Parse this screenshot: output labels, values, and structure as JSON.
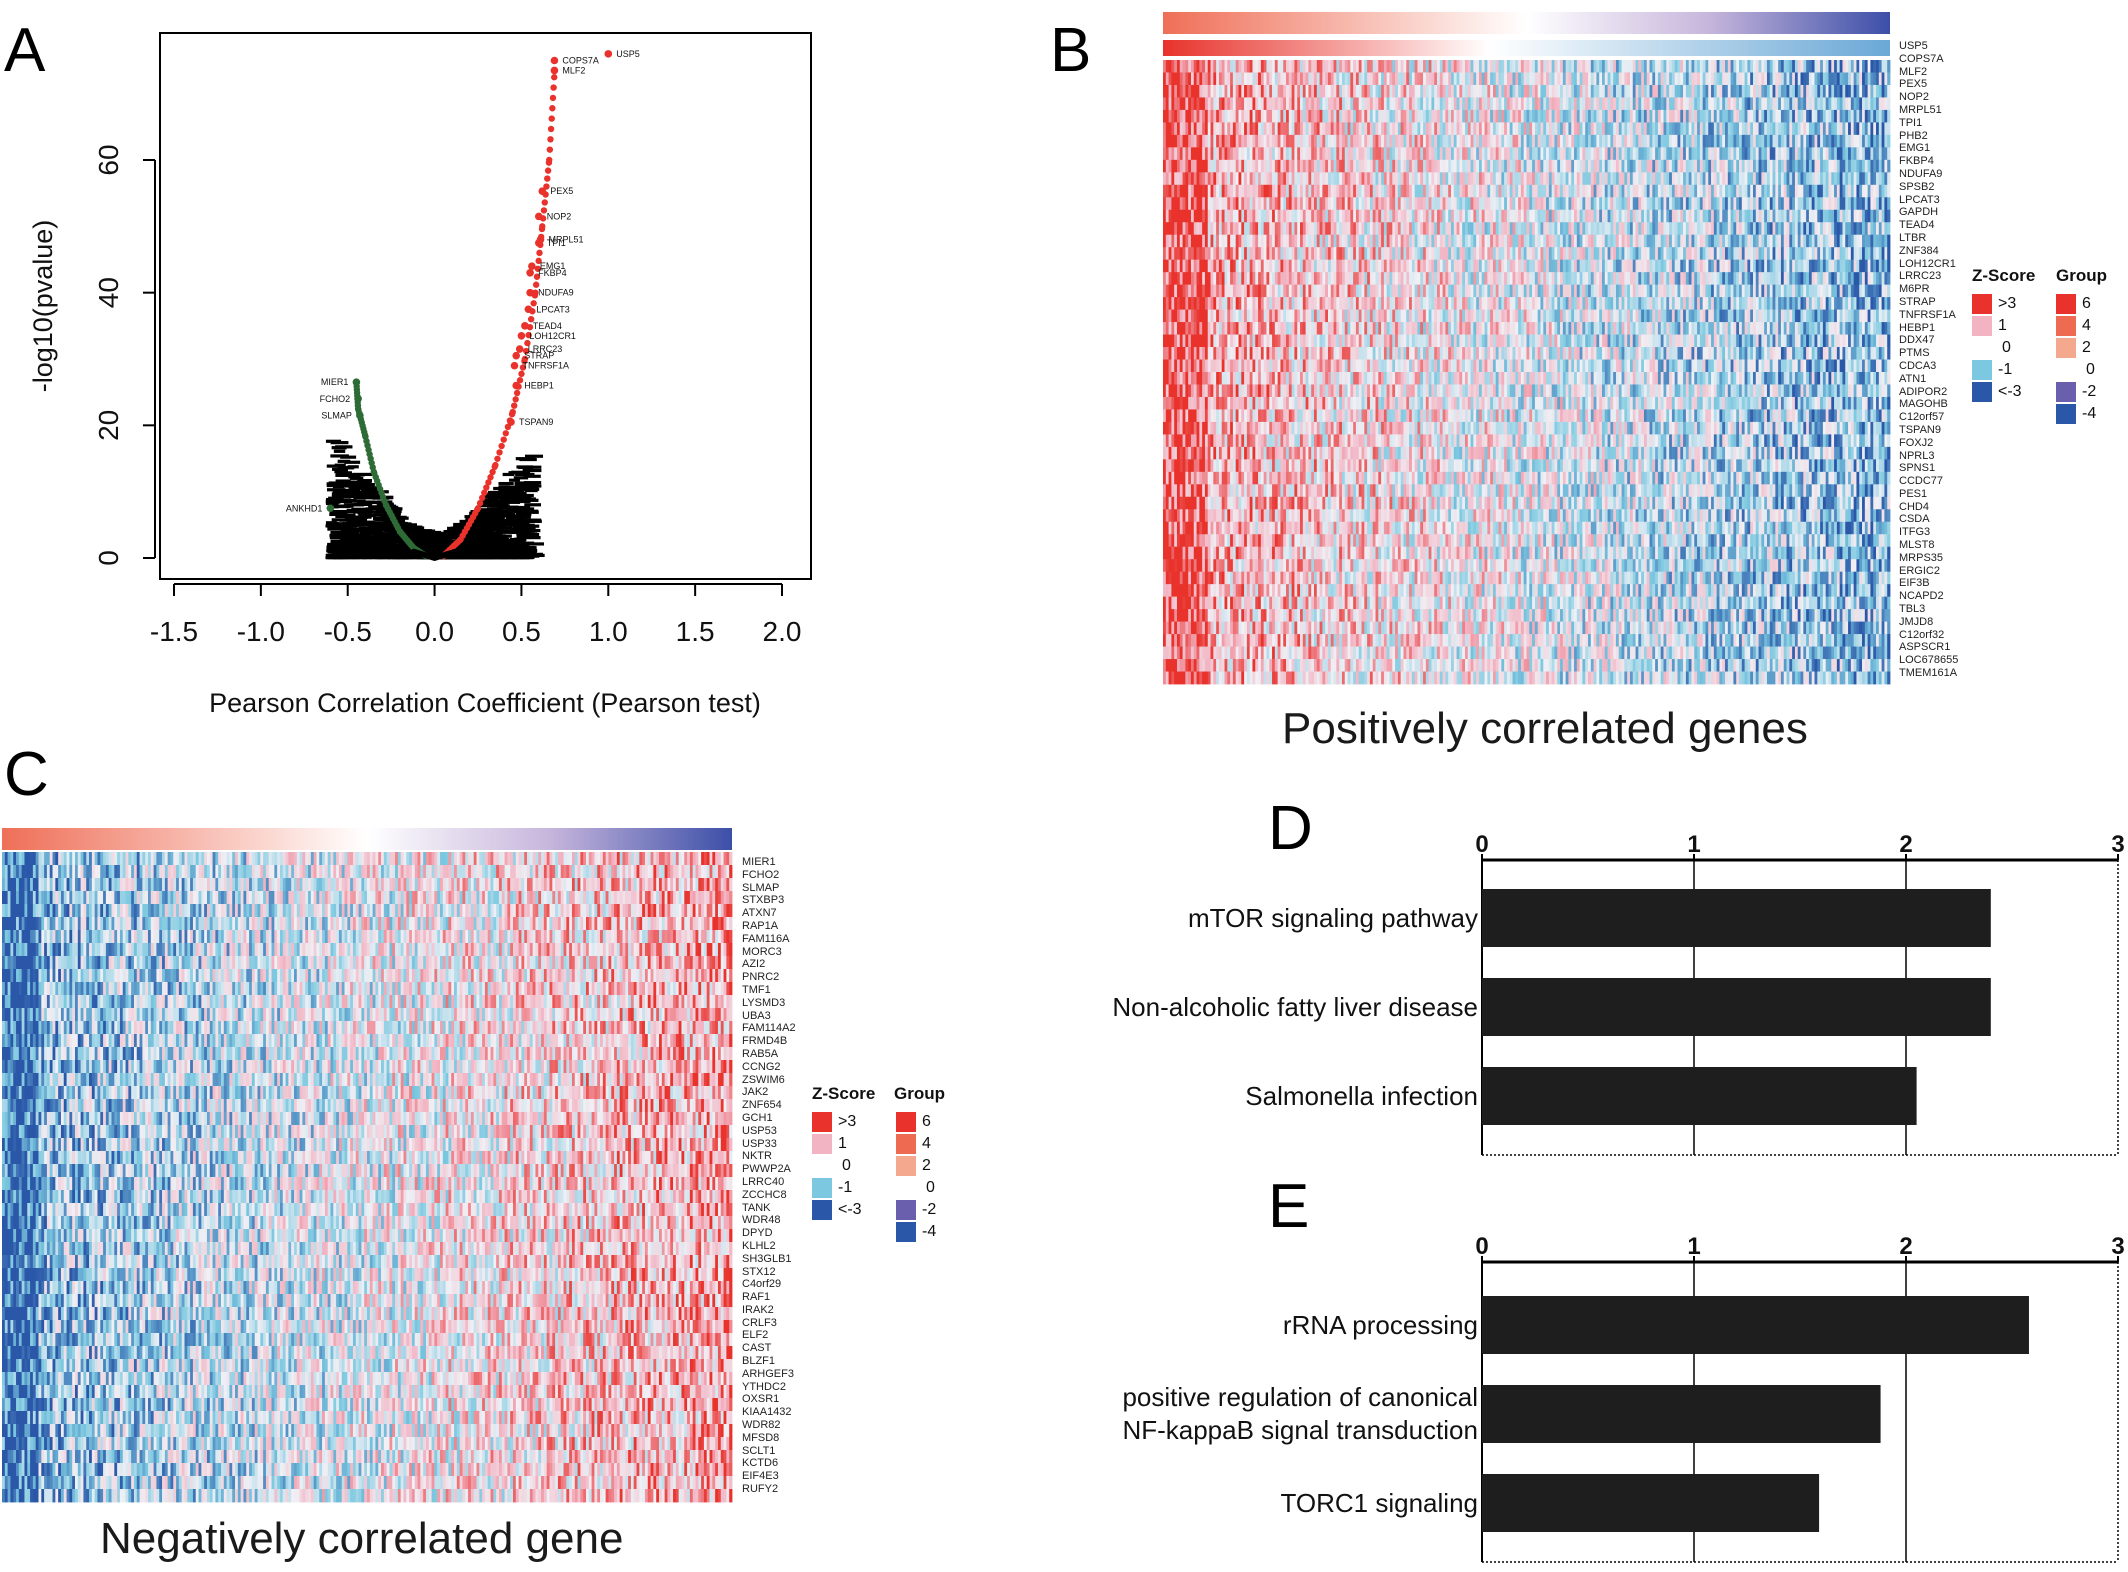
{
  "panels": {
    "A": "A",
    "B": "B",
    "C": "C",
    "D": "D",
    "E": "E"
  },
  "colors": {
    "positive": "#e8322b",
    "negative": "#2e6b36",
    "neutral": "#000000",
    "heat_red": "#e8322b",
    "heat_pink": "#f2b3c2",
    "heat_white": "#ffffff",
    "heat_lightblue": "#7cc8e0",
    "heat_blue": "#2b57a8",
    "group_6": "#e8322b",
    "group_4": "#ee6a50",
    "group_2": "#f4a98f",
    "group_m2": "#6a5fad",
    "group_m4": "#2b57a8",
    "bar": "#1e1e1e"
  },
  "chart_data": [
    {
      "panel": "A",
      "type": "scatter",
      "xlabel": "Pearson Correlation Coefficient (Pearson test)",
      "ylabel": "-log10(pvalue)",
      "xlim": [
        -1.6,
        2.1
      ],
      "ylim": [
        -3,
        79
      ],
      "xticks": [
        "-1.5",
        "-1.0",
        "-0.5",
        "0.0",
        "0.5",
        "1.0",
        "1.5",
        "2.0"
      ],
      "xtick_values": [
        -1.5,
        -1.0,
        -0.5,
        0.0,
        0.5,
        1.0,
        1.5,
        2.0
      ],
      "yticks": [
        "0",
        "20",
        "40",
        "60"
      ],
      "ytick_values": [
        0,
        20,
        40,
        60
      ],
      "labeled_points": [
        {
          "label": "USP5",
          "x": 1.0,
          "y": 76.0,
          "group": "positive"
        },
        {
          "label": "COPS7A",
          "x": 0.69,
          "y": 75.0,
          "group": "positive"
        },
        {
          "label": "MLF2",
          "x": 0.69,
          "y": 73.5,
          "group": "positive"
        },
        {
          "label": "PEX5",
          "x": 0.62,
          "y": 55.3,
          "group": "positive"
        },
        {
          "label": "NOP2",
          "x": 0.6,
          "y": 51.5,
          "group": "positive"
        },
        {
          "label": "MRPL51",
          "x": 0.61,
          "y": 48.0,
          "group": "positive"
        },
        {
          "label": "TPI1",
          "x": 0.6,
          "y": 47.5,
          "group": "positive"
        },
        {
          "label": "EMG1",
          "x": 0.56,
          "y": 44.0,
          "group": "positive"
        },
        {
          "label": "FKBP4",
          "x": 0.55,
          "y": 43.0,
          "group": "positive"
        },
        {
          "label": "NDUFA9",
          "x": 0.55,
          "y": 40.0,
          "group": "positive"
        },
        {
          "label": "LPCAT3",
          "x": 0.54,
          "y": 37.5,
          "group": "positive"
        },
        {
          "label": "TEAD4",
          "x": 0.52,
          "y": 35.0,
          "group": "positive"
        },
        {
          "label": "LOH12CR1",
          "x": 0.5,
          "y": 33.5,
          "group": "positive"
        },
        {
          "label": "LRRC23",
          "x": 0.49,
          "y": 31.5,
          "group": "positive"
        },
        {
          "label": "STRAP",
          "x": 0.47,
          "y": 30.5,
          "group": "positive"
        },
        {
          "label": "TNFRSF1A",
          "x": 0.46,
          "y": 29.0,
          "group": "positive"
        },
        {
          "label": "HEBP1",
          "x": 0.47,
          "y": 26.0,
          "group": "positive"
        },
        {
          "label": "TSPAN9",
          "x": 0.44,
          "y": 20.5,
          "group": "positive"
        },
        {
          "label": "MIER1",
          "x": -0.45,
          "y": 26.5,
          "group": "negative"
        },
        {
          "label": "FCHO2",
          "x": -0.44,
          "y": 24.0,
          "group": "negative"
        },
        {
          "label": "SLMAP",
          "x": -0.43,
          "y": 21.5,
          "group": "negative"
        },
        {
          "label": "ANKHD1",
          "x": -0.6,
          "y": 7.5,
          "group": "negative"
        }
      ],
      "background": {
        "description_free": true,
        "curve_points_positive": [
          [
            0.05,
            0.3
          ],
          [
            0.15,
            2.8
          ],
          [
            0.25,
            7.5
          ],
          [
            0.35,
            14.0
          ],
          [
            0.45,
            22.0
          ],
          [
            0.52,
            30.0
          ],
          [
            0.58,
            40.0
          ],
          [
            0.62,
            50.0
          ],
          [
            0.66,
            60.0
          ],
          [
            0.69,
            73.0
          ]
        ],
        "curve_points_negative": [
          [
            -0.05,
            0.3
          ],
          [
            -0.12,
            1.5
          ],
          [
            -0.2,
            4.0
          ],
          [
            -0.28,
            8.0
          ],
          [
            -0.35,
            13.0
          ],
          [
            -0.4,
            18.5
          ],
          [
            -0.44,
            22.5
          ],
          [
            -0.45,
            26.5
          ]
        ]
      }
    },
    {
      "panel": "B",
      "type": "heatmap",
      "title": "Positively correlated genes",
      "rows": [
        "USP5",
        "COPS7A",
        "MLF2",
        "PEX5",
        "NOP2",
        "MRPL51",
        "TPI1",
        "PHB2",
        "EMG1",
        "FKBP4",
        "NDUFA9",
        "SPSB2",
        "LPCAT3",
        "GAPDH",
        "TEAD4",
        "LTBR",
        "ZNF384",
        "LOH12CR1",
        "LRRC23",
        "M6PR",
        "STRAP",
        "TNFRSF1A",
        "HEBP1",
        "DDX47",
        "PTMS",
        "CDCA3",
        "ATN1",
        "ADIPOR2",
        "MAGOHB",
        "C12orf57",
        "TSPAN9",
        "FOXJ2",
        "NPRL3",
        "SPNS1",
        "CCDC77",
        "PES1",
        "CHD4",
        "CSDA",
        "ITFG3",
        "MLST8",
        "MRPS35",
        "ERGIC2",
        "EIF3B",
        "NCAPD2",
        "TBL3",
        "JMJD8",
        "C12orf32",
        "ASPSCR1",
        "LOC678655",
        "TMEM161A"
      ],
      "trend": "red-to-blue"
    },
    {
      "panel": "C",
      "type": "heatmap",
      "title": "Negatively correlated gene",
      "rows": [
        "MIER1",
        "FCHO2",
        "SLMAP",
        "STXBP3",
        "ATXN7",
        "RAP1A",
        "FAM116A",
        "MORC3",
        "AZI2",
        "PNRC2",
        "TMF1",
        "LYSMD3",
        "UBA3",
        "FAM114A2",
        "FRMD4B",
        "RAB5A",
        "CCNG2",
        "ZSWIM6",
        "JAK2",
        "ZNF654",
        "GCH1",
        "USP53",
        "USP33",
        "NKTR",
        "PWWP2A",
        "LRRC40",
        "ZCCHC8",
        "TANK",
        "WDR48",
        "DPYD",
        "KLHL2",
        "SH3GLB1",
        "STX12",
        "C4orf29",
        "RAF1",
        "IRAK2",
        "CRLF3",
        "ELF2",
        "CAST",
        "BLZF1",
        "ARHGEF3",
        "YTHDC2",
        "OXSR1",
        "KIAA1432",
        "WDR82",
        "MFSD8",
        "SCLT1",
        "KCTD6",
        "EIF4E3",
        "RUFY2"
      ],
      "trend": "blue-to-red"
    },
    {
      "panel": "D",
      "type": "bar",
      "orientation": "horizontal",
      "categories": [
        "mTOR signaling pathway",
        "Non-alcoholic fatty liver disease",
        "Salmonella infection"
      ],
      "values": [
        2.4,
        2.4,
        2.05
      ],
      "xlim": [
        0,
        3
      ],
      "xticks": [
        "0",
        "1",
        "2",
        "3"
      ]
    },
    {
      "panel": "E",
      "type": "bar",
      "orientation": "horizontal",
      "categories": [
        "rRNA processing",
        "positive regulation of canonical NF-kappaB signal transduction",
        "TORC1 signaling"
      ],
      "category_lines": [
        [
          "rRNA processing"
        ],
        [
          "positive regulation of canonical",
          "NF-kappaB signal transduction"
        ],
        [
          "TORC1 signaling"
        ]
      ],
      "values": [
        2.58,
        1.88,
        1.59
      ],
      "xlim": [
        0,
        3
      ],
      "xticks": [
        "0",
        "1",
        "2",
        "3"
      ]
    }
  ],
  "legend": {
    "zscore_title": "Z-Score",
    "group_title": "Group",
    "zscore_labels": [
      ">3",
      "1",
      "0",
      "-1",
      "<-3"
    ],
    "group_labels": [
      "6",
      "4",
      "2",
      "0",
      "-2",
      "-4"
    ]
  }
}
